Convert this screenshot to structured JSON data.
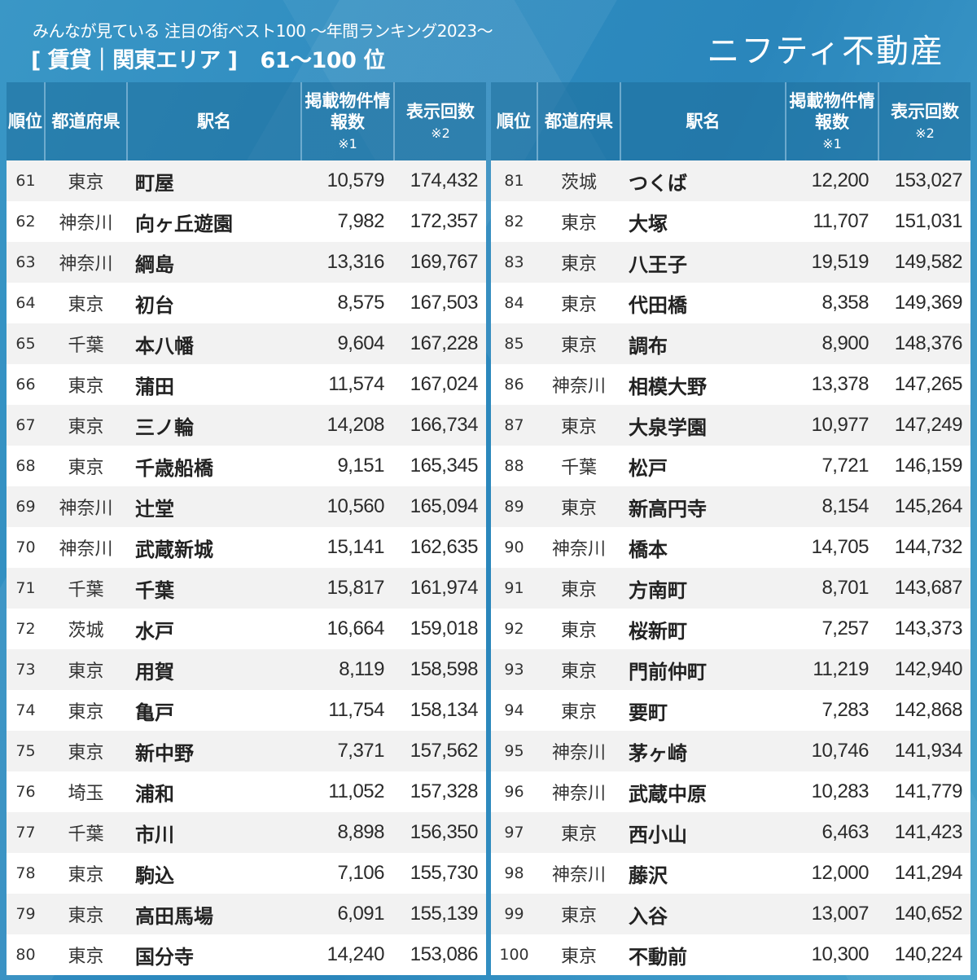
{
  "header": {
    "subtitle": "みんなが見ている 注目の街ベスト100 〜年間ランキング2023〜",
    "title": "[ 賃貸｜関東エリア ]",
    "range": "61〜100 位",
    "logo": "ニフティ不動産"
  },
  "columns": {
    "rank": "順位",
    "prefecture": "都道府県",
    "station": "駅名",
    "listings": "掲載物件情報数",
    "listings_note": "※1",
    "views": "表示回数",
    "views_note": "※2"
  },
  "colors": {
    "background": "#2f8cc0",
    "header_cell": "#2a7fae",
    "row_odd": "#f2f2f2",
    "row_even": "#ffffff",
    "text": "#222222"
  },
  "left_table": [
    {
      "rank": "61",
      "prefecture": "東京",
      "station": "町屋",
      "listings": "10,579",
      "views": "174,432"
    },
    {
      "rank": "62",
      "prefecture": "神奈川",
      "station": "向ヶ丘遊園",
      "listings": "7,982",
      "views": "172,357"
    },
    {
      "rank": "63",
      "prefecture": "神奈川",
      "station": "綱島",
      "listings": "13,316",
      "views": "169,767"
    },
    {
      "rank": "64",
      "prefecture": "東京",
      "station": "初台",
      "listings": "8,575",
      "views": "167,503"
    },
    {
      "rank": "65",
      "prefecture": "千葉",
      "station": "本八幡",
      "listings": "9,604",
      "views": "167,228"
    },
    {
      "rank": "66",
      "prefecture": "東京",
      "station": "蒲田",
      "listings": "11,574",
      "views": "167,024"
    },
    {
      "rank": "67",
      "prefecture": "東京",
      "station": "三ノ輪",
      "listings": "14,208",
      "views": "166,734"
    },
    {
      "rank": "68",
      "prefecture": "東京",
      "station": "千歳船橋",
      "listings": "9,151",
      "views": "165,345"
    },
    {
      "rank": "69",
      "prefecture": "神奈川",
      "station": "辻堂",
      "listings": "10,560",
      "views": "165,094"
    },
    {
      "rank": "70",
      "prefecture": "神奈川",
      "station": "武蔵新城",
      "listings": "15,141",
      "views": "162,635"
    },
    {
      "rank": "71",
      "prefecture": "千葉",
      "station": "千葉",
      "listings": "15,817",
      "views": "161,974"
    },
    {
      "rank": "72",
      "prefecture": "茨城",
      "station": "水戸",
      "listings": "16,664",
      "views": "159,018"
    },
    {
      "rank": "73",
      "prefecture": "東京",
      "station": "用賀",
      "listings": "8,119",
      "views": "158,598"
    },
    {
      "rank": "74",
      "prefecture": "東京",
      "station": "亀戸",
      "listings": "11,754",
      "views": "158,134"
    },
    {
      "rank": "75",
      "prefecture": "東京",
      "station": "新中野",
      "listings": "7,371",
      "views": "157,562"
    },
    {
      "rank": "76",
      "prefecture": "埼玉",
      "station": "浦和",
      "listings": "11,052",
      "views": "157,328"
    },
    {
      "rank": "77",
      "prefecture": "千葉",
      "station": "市川",
      "listings": "8,898",
      "views": "156,350"
    },
    {
      "rank": "78",
      "prefecture": "東京",
      "station": "駒込",
      "listings": "7,106",
      "views": "155,730"
    },
    {
      "rank": "79",
      "prefecture": "東京",
      "station": "高田馬場",
      "listings": "6,091",
      "views": "155,139"
    },
    {
      "rank": "80",
      "prefecture": "東京",
      "station": "国分寺",
      "listings": "14,240",
      "views": "153,086"
    }
  ],
  "right_table": [
    {
      "rank": "81",
      "prefecture": "茨城",
      "station": "つくば",
      "listings": "12,200",
      "views": "153,027"
    },
    {
      "rank": "82",
      "prefecture": "東京",
      "station": "大塚",
      "listings": "11,707",
      "views": "151,031"
    },
    {
      "rank": "83",
      "prefecture": "東京",
      "station": "八王子",
      "listings": "19,519",
      "views": "149,582"
    },
    {
      "rank": "84",
      "prefecture": "東京",
      "station": "代田橋",
      "listings": "8,358",
      "views": "149,369"
    },
    {
      "rank": "85",
      "prefecture": "東京",
      "station": "調布",
      "listings": "8,900",
      "views": "148,376"
    },
    {
      "rank": "86",
      "prefecture": "神奈川",
      "station": "相模大野",
      "listings": "13,378",
      "views": "147,265"
    },
    {
      "rank": "87",
      "prefecture": "東京",
      "station": "大泉学園",
      "listings": "10,977",
      "views": "147,249"
    },
    {
      "rank": "88",
      "prefecture": "千葉",
      "station": "松戸",
      "listings": "7,721",
      "views": "146,159"
    },
    {
      "rank": "89",
      "prefecture": "東京",
      "station": "新高円寺",
      "listings": "8,154",
      "views": "145,264"
    },
    {
      "rank": "90",
      "prefecture": "神奈川",
      "station": "橋本",
      "listings": "14,705",
      "views": "144,732"
    },
    {
      "rank": "91",
      "prefecture": "東京",
      "station": "方南町",
      "listings": "8,701",
      "views": "143,687"
    },
    {
      "rank": "92",
      "prefecture": "東京",
      "station": "桜新町",
      "listings": "7,257",
      "views": "143,373"
    },
    {
      "rank": "93",
      "prefecture": "東京",
      "station": "門前仲町",
      "listings": "11,219",
      "views": "142,940"
    },
    {
      "rank": "94",
      "prefecture": "東京",
      "station": "要町",
      "listings": "7,283",
      "views": "142,868"
    },
    {
      "rank": "95",
      "prefecture": "神奈川",
      "station": "茅ヶ崎",
      "listings": "10,746",
      "views": "141,934"
    },
    {
      "rank": "96",
      "prefecture": "神奈川",
      "station": "武蔵中原",
      "listings": "10,283",
      "views": "141,779"
    },
    {
      "rank": "97",
      "prefecture": "東京",
      "station": "西小山",
      "listings": "6,463",
      "views": "141,423"
    },
    {
      "rank": "98",
      "prefecture": "神奈川",
      "station": "藤沢",
      "listings": "12,000",
      "views": "141,294"
    },
    {
      "rank": "99",
      "prefecture": "東京",
      "station": "入谷",
      "listings": "13,007",
      "views": "140,652"
    },
    {
      "rank": "100",
      "prefecture": "東京",
      "station": "不動前",
      "listings": "10,300",
      "views": "140,224"
    }
  ]
}
